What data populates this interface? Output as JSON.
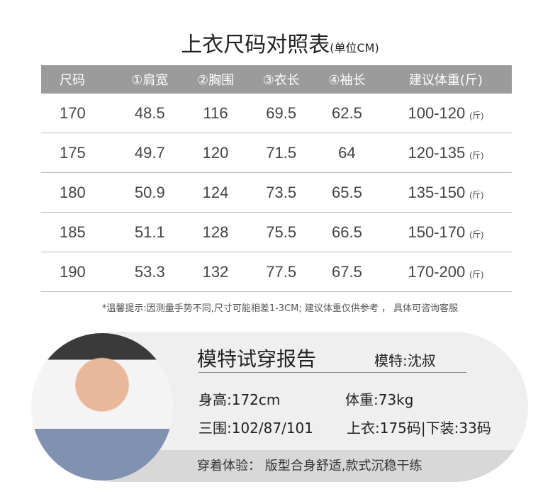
{
  "title": "上衣尺码对照表",
  "unit": "(单位CM)",
  "headers": [
    "尺码",
    "①肩宽",
    "②胸围",
    "③衣长",
    "④袖长",
    "建议体重(斤)"
  ],
  "rows": [
    [
      "170",
      "48.5",
      "116",
      "69.5",
      "62.5",
      "100-120"
    ],
    [
      "175",
      "49.7",
      "120",
      "71.5",
      "64",
      "120-135"
    ],
    [
      "180",
      "50.9",
      "124",
      "73.5",
      "65.5",
      "135-150"
    ],
    [
      "185",
      "51.1",
      "128",
      "75.5",
      "66.5",
      "150-170"
    ],
    [
      "190",
      "53.3",
      "132",
      "77.5",
      "67.5",
      "170-200"
    ]
  ],
  "weight_unit": "(斤)",
  "note": "*温馨提示:因测量手势不同,尺寸可能相差1-3CM; 建议体重仅供参考 ， 具体可咨询客服",
  "report": {
    "title": "模特试穿报告",
    "model": "模特:沈叔",
    "height": "身高:172cm",
    "weight": "体重:73kg",
    "measurements": "三围:102/87/101",
    "sizes": "上衣:175码|下装:33码",
    "experience": "穿着体验： 版型合身舒适,款式沉稳干练"
  }
}
